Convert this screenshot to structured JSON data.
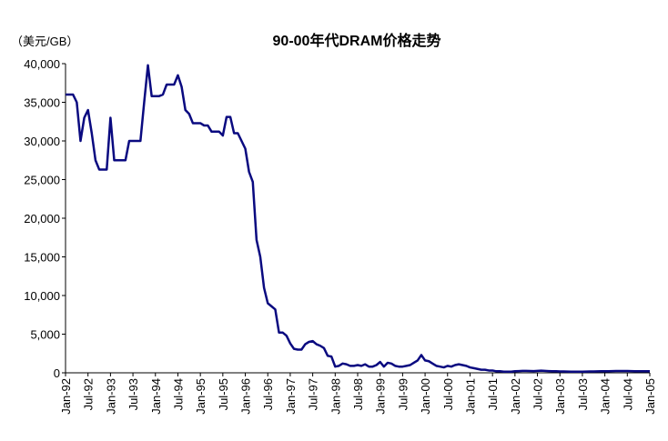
{
  "chart_data": {
    "type": "line",
    "title": "90-00年代DRAM价格走势",
    "y_label": "（美元/GB）",
    "categories": [
      "Jan-92",
      null,
      null,
      null,
      null,
      null,
      "Jul-92",
      null,
      null,
      null,
      null,
      null,
      "Jan-93",
      null,
      null,
      null,
      null,
      null,
      "Jul-93",
      null,
      null,
      null,
      null,
      null,
      "Jan-94",
      null,
      null,
      null,
      null,
      null,
      "Jul-94",
      null,
      null,
      null,
      null,
      null,
      "Jan-95",
      null,
      null,
      null,
      null,
      null,
      "Jul-95",
      null,
      null,
      null,
      null,
      null,
      "Jan-96",
      null,
      null,
      null,
      null,
      null,
      "Jul-96",
      null,
      null,
      null,
      null,
      null,
      "Jan-97",
      null,
      null,
      null,
      null,
      null,
      "Jul-97",
      null,
      null,
      null,
      null,
      null,
      "Jan-98",
      null,
      null,
      null,
      null,
      null,
      "Jul-98",
      null,
      null,
      null,
      null,
      null,
      "Jan-99",
      null,
      null,
      null,
      null,
      null,
      "Jul-99",
      null,
      null,
      null,
      null,
      null,
      "Jan-00",
      null,
      null,
      null,
      null,
      null,
      "Jul-00",
      null,
      null,
      null,
      null,
      null,
      "Jan-01",
      null,
      null,
      null,
      null,
      null,
      "Jul-01",
      null,
      null,
      null,
      null,
      null,
      "Jan-02",
      null,
      null,
      null,
      null,
      null,
      "Jul-02",
      null,
      null,
      null,
      null,
      null,
      "Jan-03",
      null,
      null,
      null,
      null,
      null,
      "Jul-03",
      null,
      null,
      null,
      null,
      null,
      "Jan-04",
      null,
      null,
      null,
      null,
      null,
      "Jul-04",
      null,
      null,
      null,
      null,
      null,
      "Jan-05"
    ],
    "series": [
      {
        "color": "#0a0a80",
        "values": [
          36000,
          36000,
          36000,
          35000,
          30000,
          33000,
          34000,
          31000,
          27500,
          26300,
          26300,
          26300,
          33000,
          27500,
          27500,
          27500,
          27500,
          30000,
          30000,
          30000,
          30000,
          35000,
          39800,
          35800,
          35800,
          35800,
          36000,
          37300,
          37300,
          37300,
          38500,
          37000,
          34000,
          33500,
          32300,
          32300,
          32300,
          32000,
          32000,
          31200,
          31200,
          31200,
          30700,
          33100,
          33100,
          31000,
          31000,
          30000,
          29000,
          26000,
          24700,
          17200,
          15000,
          11000,
          9000,
          8600,
          8200,
          5200,
          5200,
          4800,
          3800,
          3100,
          3000,
          3000,
          3700,
          4000,
          4100,
          3700,
          3500,
          3200,
          2200,
          2100,
          800,
          900,
          1200,
          1100,
          900,
          900,
          1000,
          900,
          1100,
          800,
          800,
          1000,
          1400,
          800,
          1300,
          1200,
          900,
          800,
          800,
          900,
          1000,
          1300,
          1600,
          2300,
          1600,
          1500,
          1200,
          900,
          800,
          700,
          900,
          800,
          1000,
          1100,
          1000,
          900,
          700,
          600,
          500,
          400,
          400,
          300,
          300,
          200,
          200,
          150,
          150,
          150,
          200,
          220,
          250,
          250,
          230,
          220,
          250,
          280,
          250,
          220,
          200,
          200,
          180,
          170,
          160,
          150,
          150,
          140,
          150,
          160,
          170,
          180,
          190,
          200,
          200,
          210,
          220,
          230,
          240,
          240,
          230,
          220,
          210,
          210,
          200,
          200,
          200
        ]
      }
    ],
    "ylim": [
      0,
      40000
    ],
    "yticks": [
      0,
      {
        "value": 5000,
        "label": "5,000"
      },
      {
        "value": 10000,
        "label": "10,000"
      },
      {
        "value": 15000,
        "label": "15,000"
      },
      {
        "value": 20000,
        "label": "20,000"
      },
      {
        "value": 25000,
        "label": "25,000"
      },
      {
        "value": 30000,
        "label": "30,000"
      },
      {
        "value": 35000,
        "label": "35,000"
      },
      {
        "value": 40000,
        "label": "40,000"
      }
    ],
    "grid": false
  }
}
